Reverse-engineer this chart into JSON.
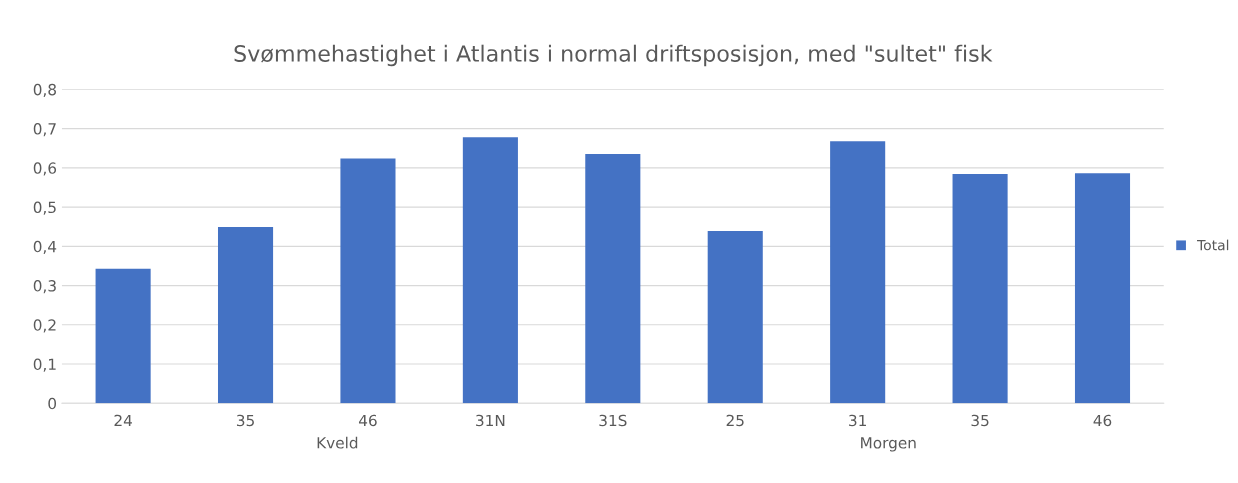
{
  "chart_data": {
    "type": "bar",
    "title": "Svømmehastighet i Atlantis i normal driftsposisjon, med \"sultet\" fisk",
    "categories": [
      "24",
      "35",
      "46",
      "31N",
      "31S",
      "25",
      "31",
      "35",
      "46"
    ],
    "series": [
      {
        "name": "Total",
        "color": "#4472c4",
        "values": [
          0.343,
          0.449,
          0.624,
          0.678,
          0.635,
          0.439,
          0.668,
          0.584,
          0.586
        ]
      }
    ],
    "ylim": [
      0,
      0.8
    ],
    "yticks": [
      0,
      {
        "value": 0.1,
        "label": "0,1"
      },
      {
        "value": 0.2,
        "label": "0,2"
      },
      {
        "value": 0.3,
        "label": "0,3"
      },
      {
        "value": 0.4,
        "label": "0,4"
      },
      {
        "value": 0.5,
        "label": "0,5"
      },
      {
        "value": 0.6,
        "label": "0,6"
      },
      {
        "value": 0.7,
        "label": "0,7"
      },
      {
        "value": 0.8,
        "label": "0,8"
      }
    ],
    "grid": "y",
    "legend": "right",
    "annotations": [
      "Kveld",
      "Morgen"
    ]
  }
}
